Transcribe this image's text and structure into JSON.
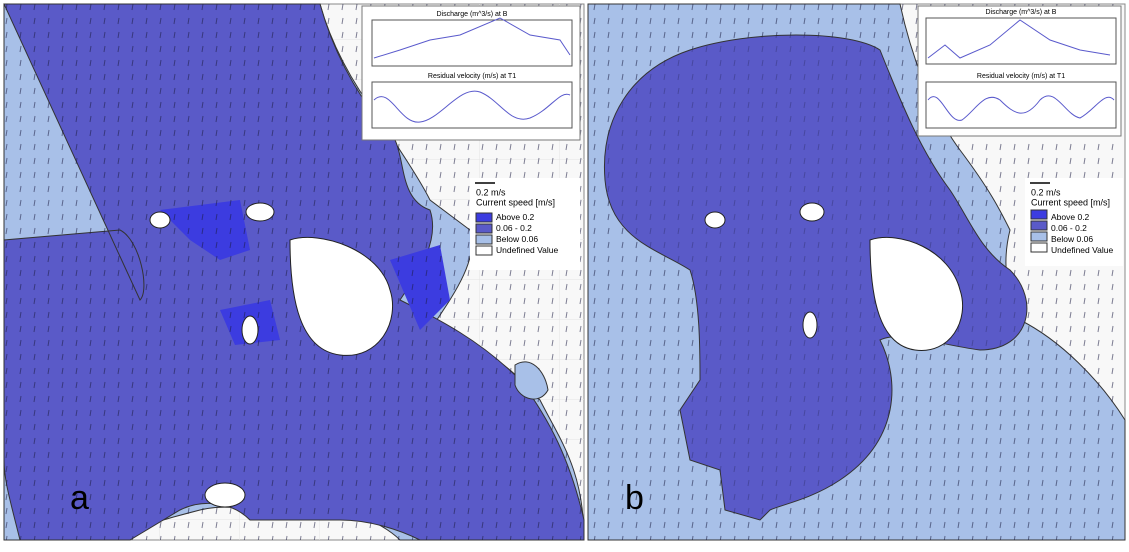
{
  "panels": [
    {
      "label": "a",
      "legend": {
        "scale": "0.2 m/s",
        "title": "Current speed [m/s]",
        "items": [
          "Above  0.2",
          "0.06 -  0.2",
          "Below  0.06",
          "Undefined Value"
        ]
      },
      "insets": [
        "Discharge (m^3/s) at B",
        "Residual velocity (m/s) at T1"
      ]
    },
    {
      "label": "b",
      "legend": {
        "scale": "0.2 m/s",
        "title": "Current speed [m/s]",
        "items": [
          "Above  0.2",
          "0.06 -  0.2",
          "Below  0.06",
          "Undefined Value"
        ]
      },
      "insets": [
        "Discharge (m^3/s) at B",
        "Residual velocity (m/s) at T1"
      ]
    }
  ]
}
